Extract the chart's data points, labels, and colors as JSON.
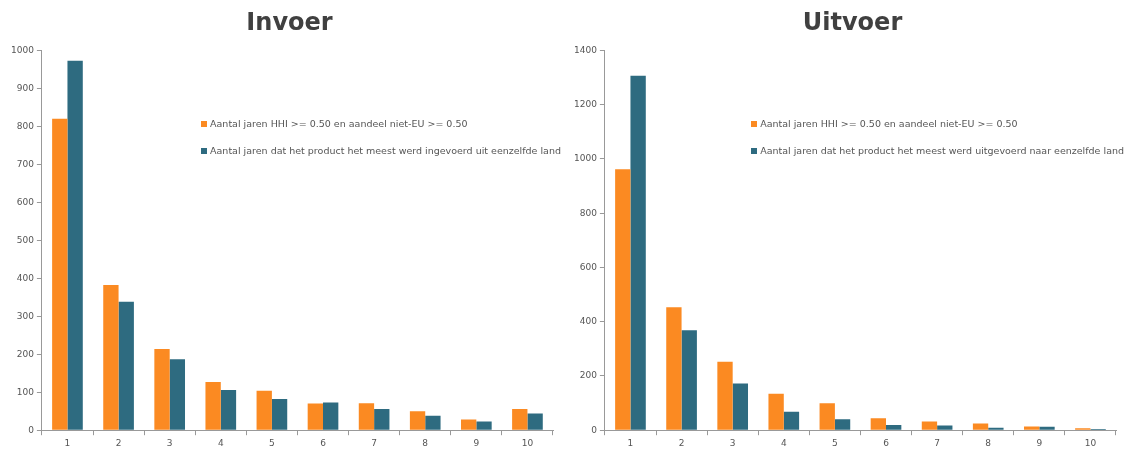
{
  "chart_data": [
    {
      "type": "bar",
      "title": "Invoer",
      "categories": [
        "1",
        "2",
        "3",
        "4",
        "5",
        "6",
        "7",
        "8",
        "9",
        "10"
      ],
      "ylim": [
        0,
        1000
      ],
      "yticks": [
        0,
        100,
        200,
        300,
        400,
        500,
        600,
        700,
        800,
        900,
        1000
      ],
      "grid": false,
      "legend": "top right",
      "series": [
        {
          "name": "Aantal jaren HHI >= 0.50 en aandeel niet-EU >= 0.50",
          "color": "#fb8a22",
          "values": [
            820,
            382,
            214,
            127,
            104,
            70,
            71,
            50,
            28,
            56
          ]
        },
        {
          "name": "Aantal jaren dat het product het meest werd ingevoerd uit eenzelfde land",
          "color": "#2e6b80",
          "values": [
            973,
            338,
            187,
            106,
            82,
            73,
            56,
            38,
            23,
            44
          ]
        }
      ]
    },
    {
      "type": "bar",
      "title": "Uitvoer",
      "categories": [
        "1",
        "2",
        "3",
        "4",
        "5",
        "6",
        "7",
        "8",
        "9",
        "10"
      ],
      "ylim": [
        0,
        1400
      ],
      "yticks": [
        0,
        200,
        400,
        600,
        800,
        1000,
        1200,
        1400
      ],
      "grid": false,
      "legend": "top right",
      "series": [
        {
          "name": "Aantal jaren HHI >= 0.50 en aandeel niet-EU >= 0.50",
          "color": "#fb8a22",
          "values": [
            962,
            453,
            252,
            134,
            99,
            44,
            32,
            25,
            14,
            7
          ]
        },
        {
          "name": "Aantal jaren dat het product het meest werd uitgevoerd naar eenzelfde land",
          "color": "#2e6b80",
          "values": [
            1307,
            368,
            172,
            68,
            40,
            19,
            17,
            9,
            13,
            4
          ]
        }
      ]
    }
  ]
}
